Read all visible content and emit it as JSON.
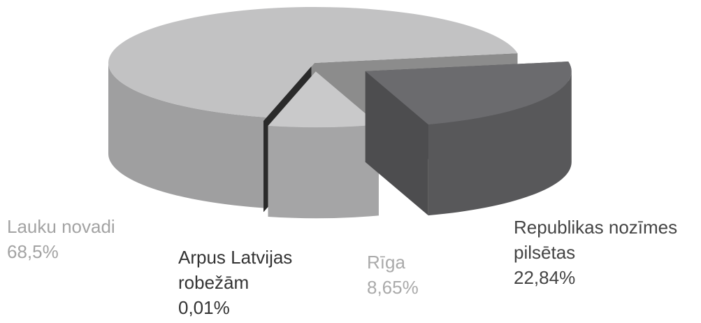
{
  "chart_data": {
    "type": "pie3d",
    "categories": [
      "Lauku novadi",
      "Arpus Latvijas robežām",
      "Rīga",
      "Republikas nozīmes pilsētas"
    ],
    "values": [
      68.5,
      0.01,
      8.65,
      22.84
    ],
    "value_labels": [
      "68,5%",
      "0,01%",
      "8,65%",
      "22,84%"
    ],
    "colors": [
      "#c2c2c3",
      "#3a3a3a",
      "#c9c9ca",
      "#6b6b6e"
    ]
  }
}
